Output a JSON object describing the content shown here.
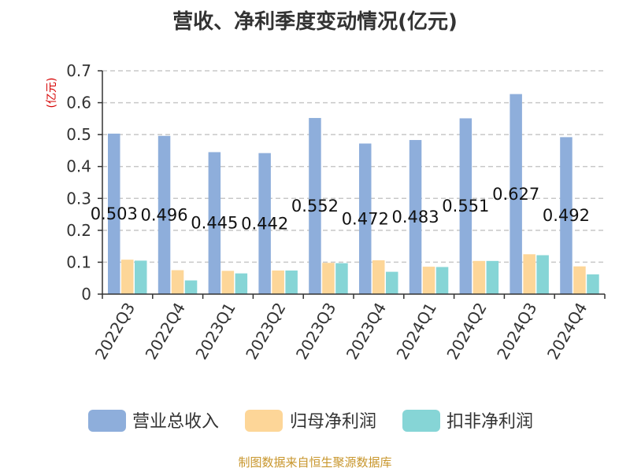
{
  "chart_data": {
    "type": "bar",
    "title": "营收、净利季度变动情况(亿元)",
    "ylabel": "(亿元)",
    "xlabel": "",
    "categories": [
      "2022Q3",
      "2022Q4",
      "2023Q1",
      "2023Q2",
      "2023Q3",
      "2023Q4",
      "2024Q1",
      "2024Q2",
      "2024Q3",
      "2024Q4"
    ],
    "yticks": [
      "0",
      "0.1",
      "0.2",
      "0.3",
      "0.4",
      "0.5",
      "0.6",
      "0.7"
    ],
    "ylim": [
      0,
      0.7
    ],
    "grid": true,
    "legend_position": "bottom",
    "series": [
      {
        "name": "营业总收入",
        "color": "#8eaedb",
        "values": [
          0.503,
          0.496,
          0.445,
          0.442,
          0.552,
          0.472,
          0.483,
          0.551,
          0.627,
          0.492
        ],
        "labels": [
          "0.503",
          "0.496",
          "0.445",
          "0.442",
          "0.552",
          "0.472",
          "0.483",
          "0.551",
          "0.627",
          "0.492"
        ]
      },
      {
        "name": "归母净利润",
        "color": "#fdd698",
        "values": [
          0.108,
          0.075,
          0.073,
          0.074,
          0.098,
          0.106,
          0.086,
          0.104,
          0.125,
          0.087
        ]
      },
      {
        "name": "扣非净利润",
        "color": "#86d5d6",
        "values": [
          0.105,
          0.043,
          0.065,
          0.074,
          0.097,
          0.07,
          0.085,
          0.104,
          0.122,
          0.062
        ]
      }
    ]
  },
  "footer": {
    "source": "制图数据来自恒生聚源数据库"
  }
}
